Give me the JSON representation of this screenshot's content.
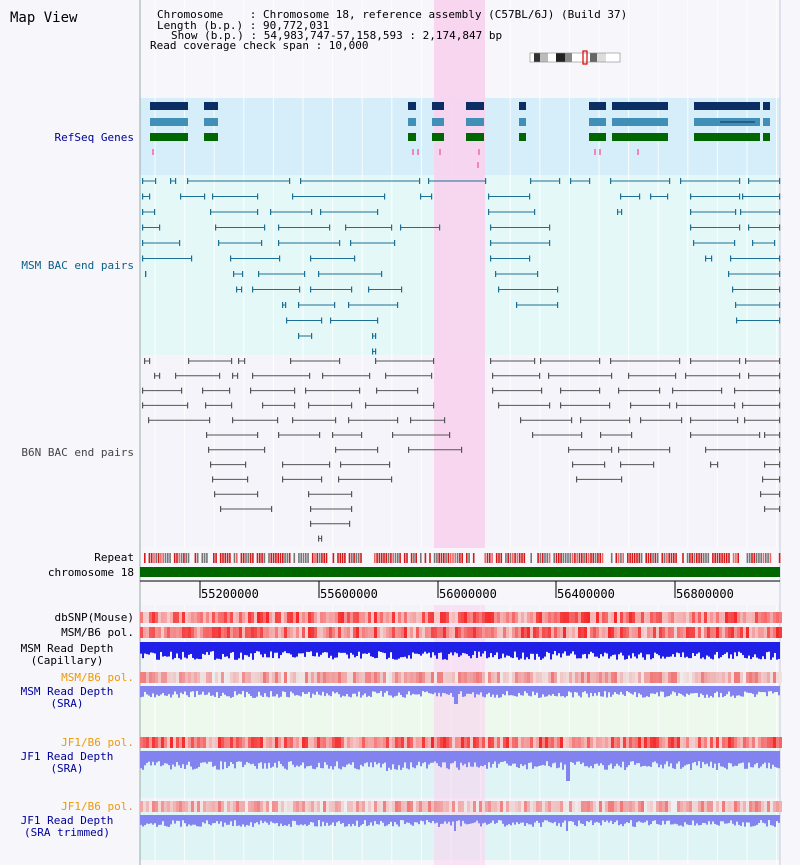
{
  "header": {
    "title": "Map View",
    "chromosome_line": "Chromosome    : Chromosome 18, reference assembly (C57BL/6J) (Build 37)",
    "length_line": "Length (b.p.) : 90,772,031",
    "show_line": "Show (b.p.) : 54,983,747-57,158,593 : 2,174,847 bp",
    "coverage_line": "Read coverage check span : 10,000"
  },
  "tracks": {
    "refseq": "RefSeq Genes",
    "msm_bac": "MSM BAC end pairs",
    "b6n_bac": "B6N BAC end pairs",
    "repeat": "Repeat",
    "chromosome": "chromosome 18",
    "dbsnp": "dbSNP(Mouse)",
    "msm_pol": "MSM/B6 pol.",
    "msm_depth_cap_1": "MSM Read Depth",
    "msm_depth_cap_2": "(Capillary)",
    "msm_pol_2": "MSM/B6 pol.",
    "msm_depth_sra_1": "MSM Read Depth",
    "msm_depth_sra_2": "(SRA)",
    "jf1_pol": "JF1/B6 pol.",
    "jf1_depth_1": "JF1 Read Depth",
    "jf1_depth_2": "(SRA)",
    "jf1_pol_2": "JF1/B6 pol.",
    "jf1_trim_1": "JF1 Read Depth",
    "jf1_trim_2": "(SRA trimmed)"
  },
  "axis": {
    "ticks": [
      "55200000",
      "55600000",
      "56000000",
      "56400000",
      "56800000"
    ]
  },
  "colors": {
    "highlight": "#f9d2ef",
    "refseq_bg": "#d5eef9",
    "bac_bg": "#e4f8f8",
    "gene_dark": "#0c2f63",
    "gene_mid": "#3f8fb6",
    "gene_green": "#006600",
    "msm_bac_line": "#1c6f95",
    "b6n_bac_line": "#555555",
    "chrom_bar": "#006600",
    "depth_blue": "#1f1fe8",
    "depth_light": "#8383f0"
  }
}
